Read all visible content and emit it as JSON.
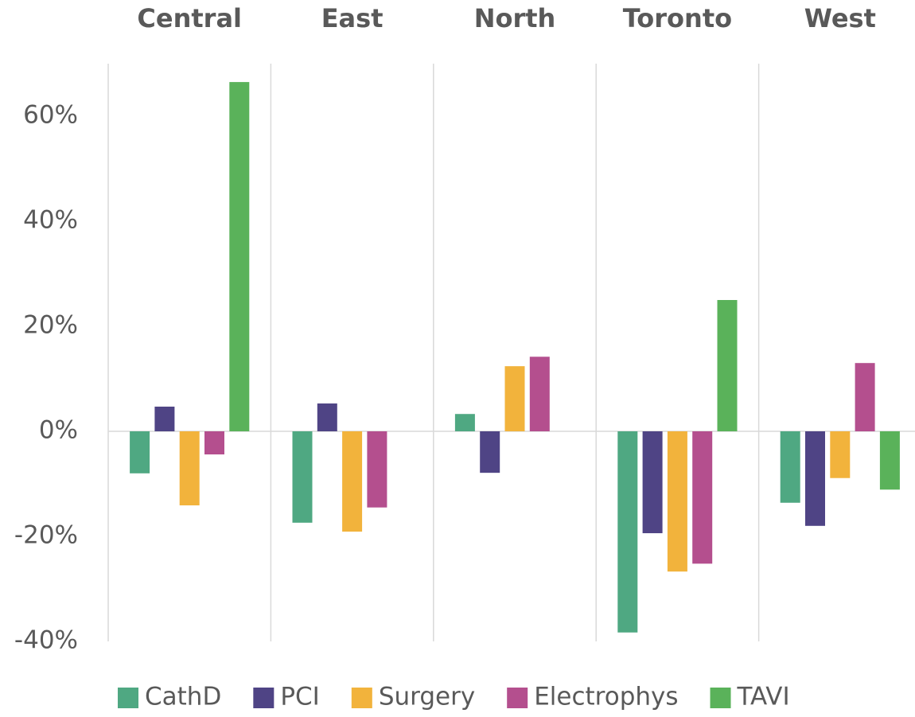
{
  "chart_data": {
    "type": "bar",
    "categories": [
      "Central",
      "East",
      "North",
      "Toronto",
      "West"
    ],
    "series": [
      {
        "name": "CathD",
        "color": "#4fa882",
        "values": [
          -8.0,
          -17.4,
          3.3,
          -38.3,
          -13.6
        ]
      },
      {
        "name": "PCI",
        "color": "#4f4485",
        "values": [
          4.7,
          5.3,
          -7.9,
          -19.4,
          -18.0
        ]
      },
      {
        "name": "Surgery",
        "color": "#f2b33c",
        "values": [
          -14.1,
          -19.1,
          12.4,
          -26.7,
          -8.9
        ]
      },
      {
        "name": "Electrophys",
        "color": "#b44f8e",
        "values": [
          -4.4,
          -14.5,
          14.2,
          -25.2,
          13.0
        ]
      },
      {
        "name": "TAVI",
        "color": "#5ab25a",
        "values": [
          66.5,
          null,
          null,
          25.0,
          -11.1
        ]
      }
    ],
    "ylim": [
      -40,
      70
    ],
    "yticks": [
      {
        "value": -40,
        "label": "-40%"
      },
      {
        "value": -20,
        "label": "-20%"
      },
      {
        "value": 0,
        "label": "0%"
      },
      {
        "value": 20,
        "label": "20%"
      },
      {
        "value": 40,
        "label": "40%"
      },
      {
        "value": 60,
        "label": "60%"
      }
    ],
    "legend": "bottom"
  }
}
